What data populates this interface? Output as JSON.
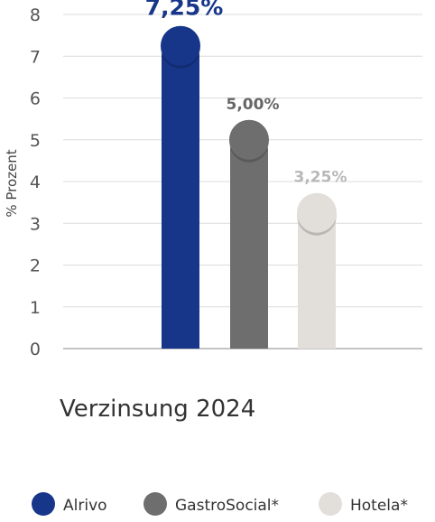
{
  "chart_data": {
    "type": "bar",
    "title": "",
    "xlabel": "Verzinsung 2024",
    "ylabel": "% Prozent",
    "ylim": [
      0,
      8
    ],
    "yticks": [
      0,
      1,
      2,
      3,
      4,
      5,
      6,
      7,
      8
    ],
    "grid": true,
    "legend_position": "bottom",
    "categories": [
      "Alrivo",
      "GastroSocial*",
      "Hotela*"
    ],
    "values": [
      7.25,
      5.0,
      3.25
    ],
    "value_labels": [
      "7,25%",
      "5,00%",
      "3,25%"
    ],
    "colors": [
      "#17368a",
      "#6e6e6e",
      "#e2dfdb"
    ],
    "label_colors": [
      "#17368a",
      "#666666",
      "#b8b8b8"
    ]
  }
}
